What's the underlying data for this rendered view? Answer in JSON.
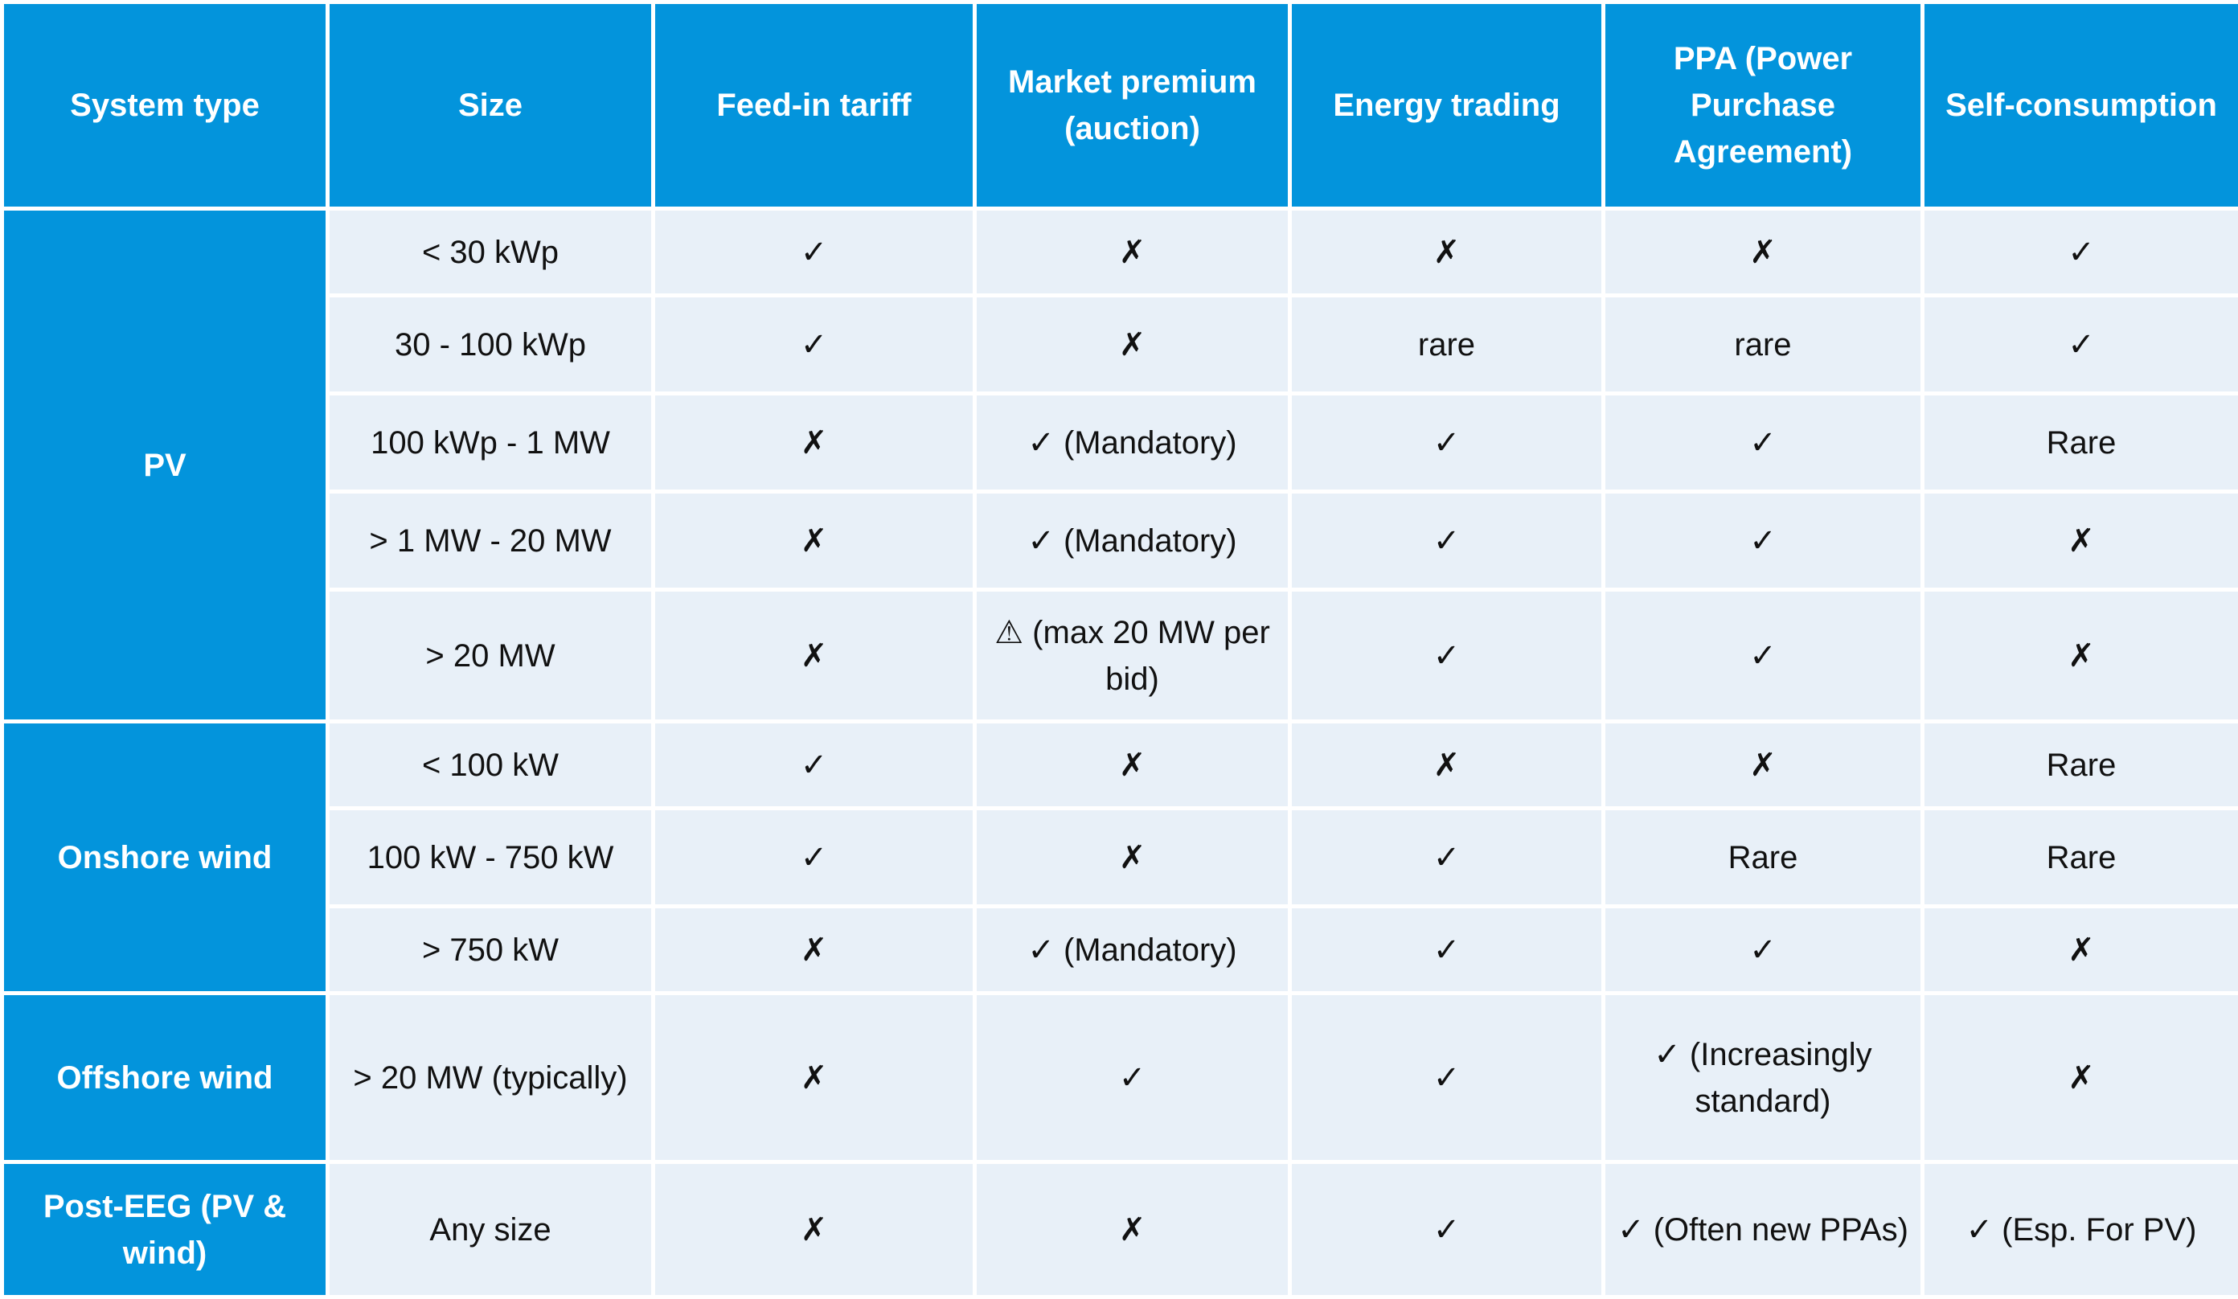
{
  "columns": [
    "System type",
    "Size",
    "Feed-in tariff",
    "Market premium (auction)",
    "Energy trading",
    "PPA (Power Purchase Agreement)",
    "Self-consumption"
  ],
  "groups": [
    {
      "label": "PV",
      "rows": [
        [
          "< 30 kWp",
          "✓",
          "✗",
          "✗",
          "✗",
          "✓"
        ],
        [
          "30 - 100 kWp",
          "✓",
          "✗",
          "rare",
          "rare",
          "✓"
        ],
        [
          "100 kWp - 1 MW",
          "✗",
          "✓ (Mandatory)",
          "✓",
          "✓",
          "Rare"
        ],
        [
          "> 1 MW - 20 MW",
          "✗",
          "✓ (Mandatory)",
          "✓",
          "✓",
          "✗"
        ],
        [
          "> 20 MW",
          "✗",
          "⚠ (max 20 MW per bid)",
          "✓",
          "✓",
          "✗"
        ]
      ]
    },
    {
      "label": "Onshore wind",
      "rows": [
        [
          "< 100 kW",
          "✓",
          "✗",
          "✗",
          "✗",
          "Rare"
        ],
        [
          "100 kW - 750 kW",
          "✓",
          "✗",
          "✓",
          "Rare",
          "Rare"
        ],
        [
          "> 750 kW",
          "✗",
          "✓ (Mandatory)",
          "✓",
          "✓",
          "✗"
        ]
      ]
    },
    {
      "label": "Offshore wind",
      "rows": [
        [
          "> 20 MW (typically)",
          "✗",
          "✓",
          "✓",
          "✓ (Increasingly standard)",
          "✗"
        ]
      ]
    },
    {
      "label": "Post-EEG (PV & wind)",
      "rows": [
        [
          "Any size",
          "✗",
          "✗",
          "✓",
          "✓ (Often new PPAs)",
          "✓ (Esp. For PV)"
        ]
      ]
    }
  ]
}
